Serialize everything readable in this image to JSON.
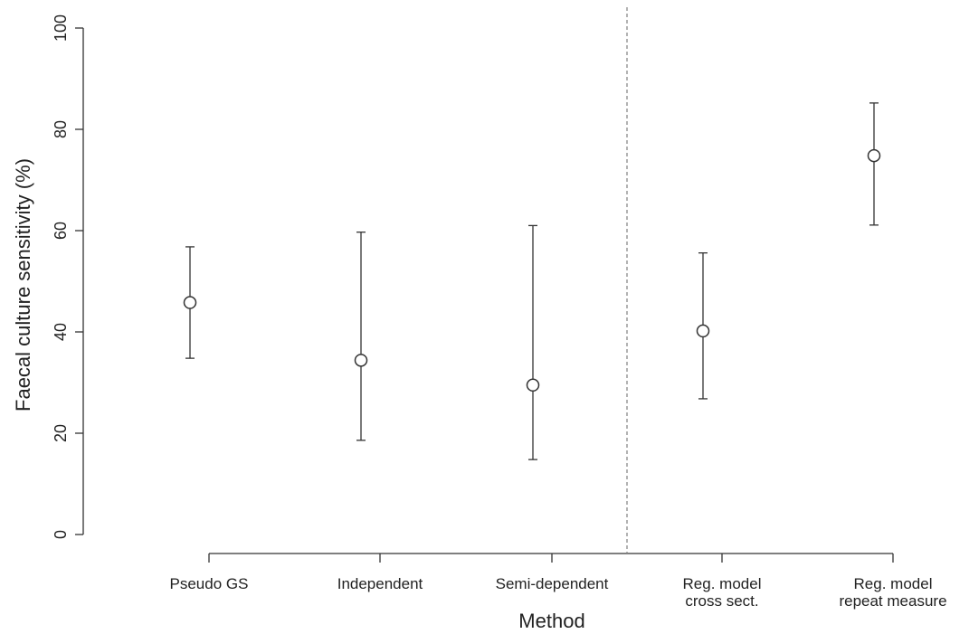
{
  "chart_data": {
    "type": "scatter",
    "title": "",
    "xlabel": "Method",
    "ylabel": "Faecal culture sensitivity (%)",
    "ylim": [
      0,
      100
    ],
    "yticks": [
      "0",
      "20",
      "40",
      "60",
      "80",
      "100"
    ],
    "categories": [
      [
        "Pseudo GS"
      ],
      [
        "Independent"
      ],
      [
        "Semi-dependent"
      ],
      [
        "Reg. model",
        "cross sect."
      ],
      [
        "Reg. model",
        "repeat measure"
      ]
    ],
    "points": [
      {
        "estimate": 45.8,
        "lower": 34.8,
        "upper": 56.8
      },
      {
        "estimate": 34.4,
        "lower": 18.6,
        "upper": 59.7
      },
      {
        "estimate": 29.5,
        "lower": 14.8,
        "upper": 61.0
      },
      {
        "estimate": 40.2,
        "lower": 26.8,
        "upper": 55.6
      },
      {
        "estimate": 74.8,
        "lower": 61.1,
        "upper": 85.2
      }
    ],
    "divider": {
      "style": "dashed",
      "between_categories": [
        3,
        4
      ]
    },
    "grid": false,
    "colors": {
      "marker": "#333333",
      "axis": "#333333",
      "divider": "#888888"
    }
  }
}
